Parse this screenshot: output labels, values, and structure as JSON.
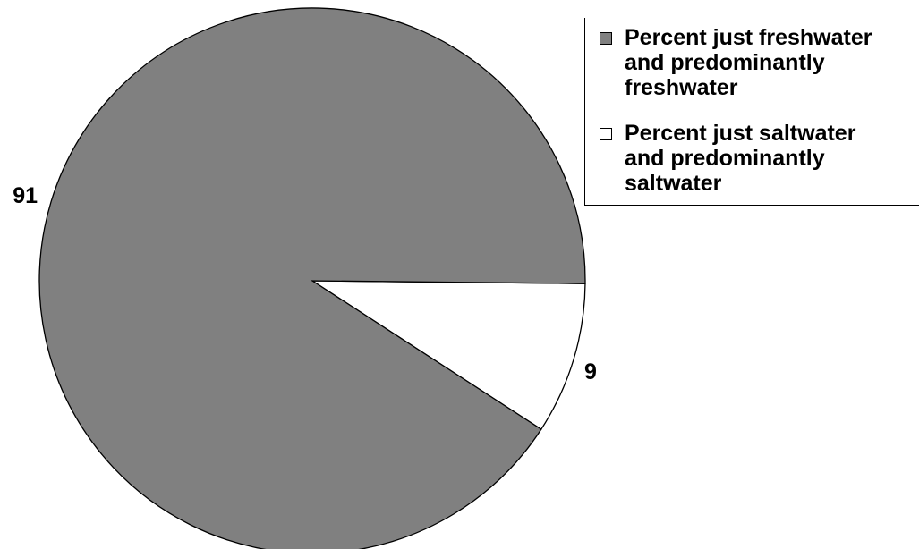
{
  "chart_data": {
    "type": "pie",
    "title": "",
    "slices": [
      {
        "label": "Percent just freshwater and predominantly freshwater",
        "value": 91,
        "data_label": "91",
        "color": "#808080"
      },
      {
        "label": "Percent just saltwater and predominantly saltwater",
        "value": 9,
        "data_label": "9",
        "color": "#ffffff"
      }
    ],
    "legend_position": "top-right"
  },
  "legend": {
    "items": [
      {
        "label": "Percent just freshwater and predominantly freshwater",
        "color": "#808080"
      },
      {
        "label": "Percent just saltwater and predominantly saltwater",
        "color": "#ffffff"
      }
    ]
  }
}
